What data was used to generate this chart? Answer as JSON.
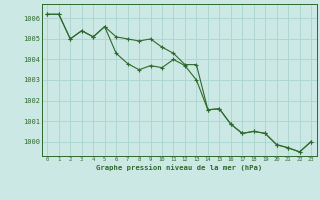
{
  "title": "Graphe pression niveau de la mer (hPa)",
  "background_color": "#cce8e4",
  "line_color": "#2d6a2d",
  "grid_color": "#aad4ce",
  "x_ticks": [
    0,
    1,
    2,
    3,
    4,
    5,
    6,
    7,
    8,
    9,
    10,
    11,
    12,
    13,
    14,
    15,
    16,
    17,
    18,
    19,
    20,
    21,
    22,
    23
  ],
  "y_ticks": [
    1000,
    1001,
    1002,
    1003,
    1004,
    1005,
    1006
  ],
  "ylim": [
    999.3,
    1006.7
  ],
  "xlim": [
    -0.5,
    23.5
  ],
  "line1_x": [
    0,
    1,
    2,
    3,
    4,
    5,
    6,
    7,
    8,
    9,
    10,
    11,
    12,
    13,
    14,
    15,
    16,
    17,
    18,
    19,
    20,
    21,
    22,
    23
  ],
  "line1_y": [
    1006.2,
    1006.2,
    1005.0,
    1005.4,
    1005.1,
    1005.6,
    1005.1,
    1005.0,
    1004.9,
    1005.0,
    1004.6,
    1004.3,
    1003.75,
    1003.75,
    1001.55,
    1001.6,
    1000.85,
    1000.4,
    1000.5,
    1000.4,
    999.85,
    999.7,
    999.5,
    1000.0
  ],
  "line2_x": [
    0,
    1,
    2,
    3,
    4,
    5,
    6,
    7,
    8,
    9,
    10,
    11,
    12,
    13,
    14,
    15,
    16,
    17,
    18,
    19,
    20,
    21,
    22,
    23
  ],
  "line2_y": [
    1006.2,
    1006.2,
    1005.0,
    1005.4,
    1005.1,
    1005.6,
    1004.3,
    1003.8,
    1003.5,
    1003.7,
    1003.6,
    1004.0,
    1003.7,
    1003.0,
    1001.55,
    1001.6,
    1000.85,
    1000.4,
    1000.5,
    1000.4,
    999.85,
    999.7,
    999.5,
    1000.0
  ]
}
